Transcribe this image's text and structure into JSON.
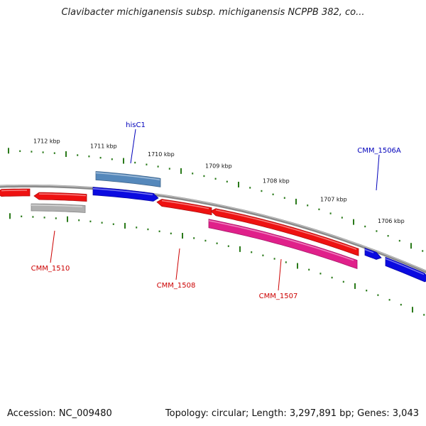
{
  "title": "Clavibacter michiganensis subsp. michiganensis NCPPB 382, co...",
  "footer": {
    "accession": "Accession: NC_009480",
    "summary": "Topology: circular; Length: 3,297,891 bp; Genes: 3,043"
  },
  "colors": {
    "backbone": "#8a8a8a",
    "tick": "#2a7a1a",
    "gene_red": "#ee1111",
    "gene_blue": "#0b0be0",
    "gene_steel": "#5588bb",
    "gene_gray": "#b0b0b0",
    "gene_pink": "#e0208a",
    "label_red": "#cc0000",
    "label_blue": "#0000bb"
  },
  "scale": {
    "ticks": [
      "1712 kbp",
      "1711 kbp",
      "1710 kbp",
      "1709 kbp",
      "1708 kbp",
      "1707 kbp",
      "1706 kbp"
    ]
  },
  "features": [
    {
      "id": "red_far_left",
      "color": "gene_red",
      "strand": "minus"
    },
    {
      "id": "cmm1510_red",
      "color": "gene_red",
      "strand": "minus"
    },
    {
      "id": "cmm1510_gray",
      "color": "gene_gray",
      "strand": "none"
    },
    {
      "id": "hisc1_steel",
      "color": "gene_steel",
      "strand": "none"
    },
    {
      "id": "hisc1_blue",
      "color": "gene_blue",
      "strand": "plus"
    },
    {
      "id": "cmm1508",
      "color": "gene_red",
      "strand": "minus"
    },
    {
      "id": "cmm1507_red",
      "color": "gene_red",
      "strand": "minus"
    },
    {
      "id": "cmm1507_pink",
      "color": "gene_pink",
      "strand": "none"
    },
    {
      "id": "cmm1506a",
      "color": "gene_blue",
      "strand": "plus"
    },
    {
      "id": "blue_far_right",
      "color": "gene_blue",
      "strand": "plus"
    }
  ],
  "gene_labels": [
    {
      "text": "hisC1",
      "color": "label_blue"
    },
    {
      "text": "CMM_1506A",
      "color": "label_blue"
    },
    {
      "text": "CMM_1510",
      "color": "label_red"
    },
    {
      "text": "CMM_1508",
      "color": "label_red"
    },
    {
      "text": "CMM_1507",
      "color": "label_red"
    }
  ]
}
